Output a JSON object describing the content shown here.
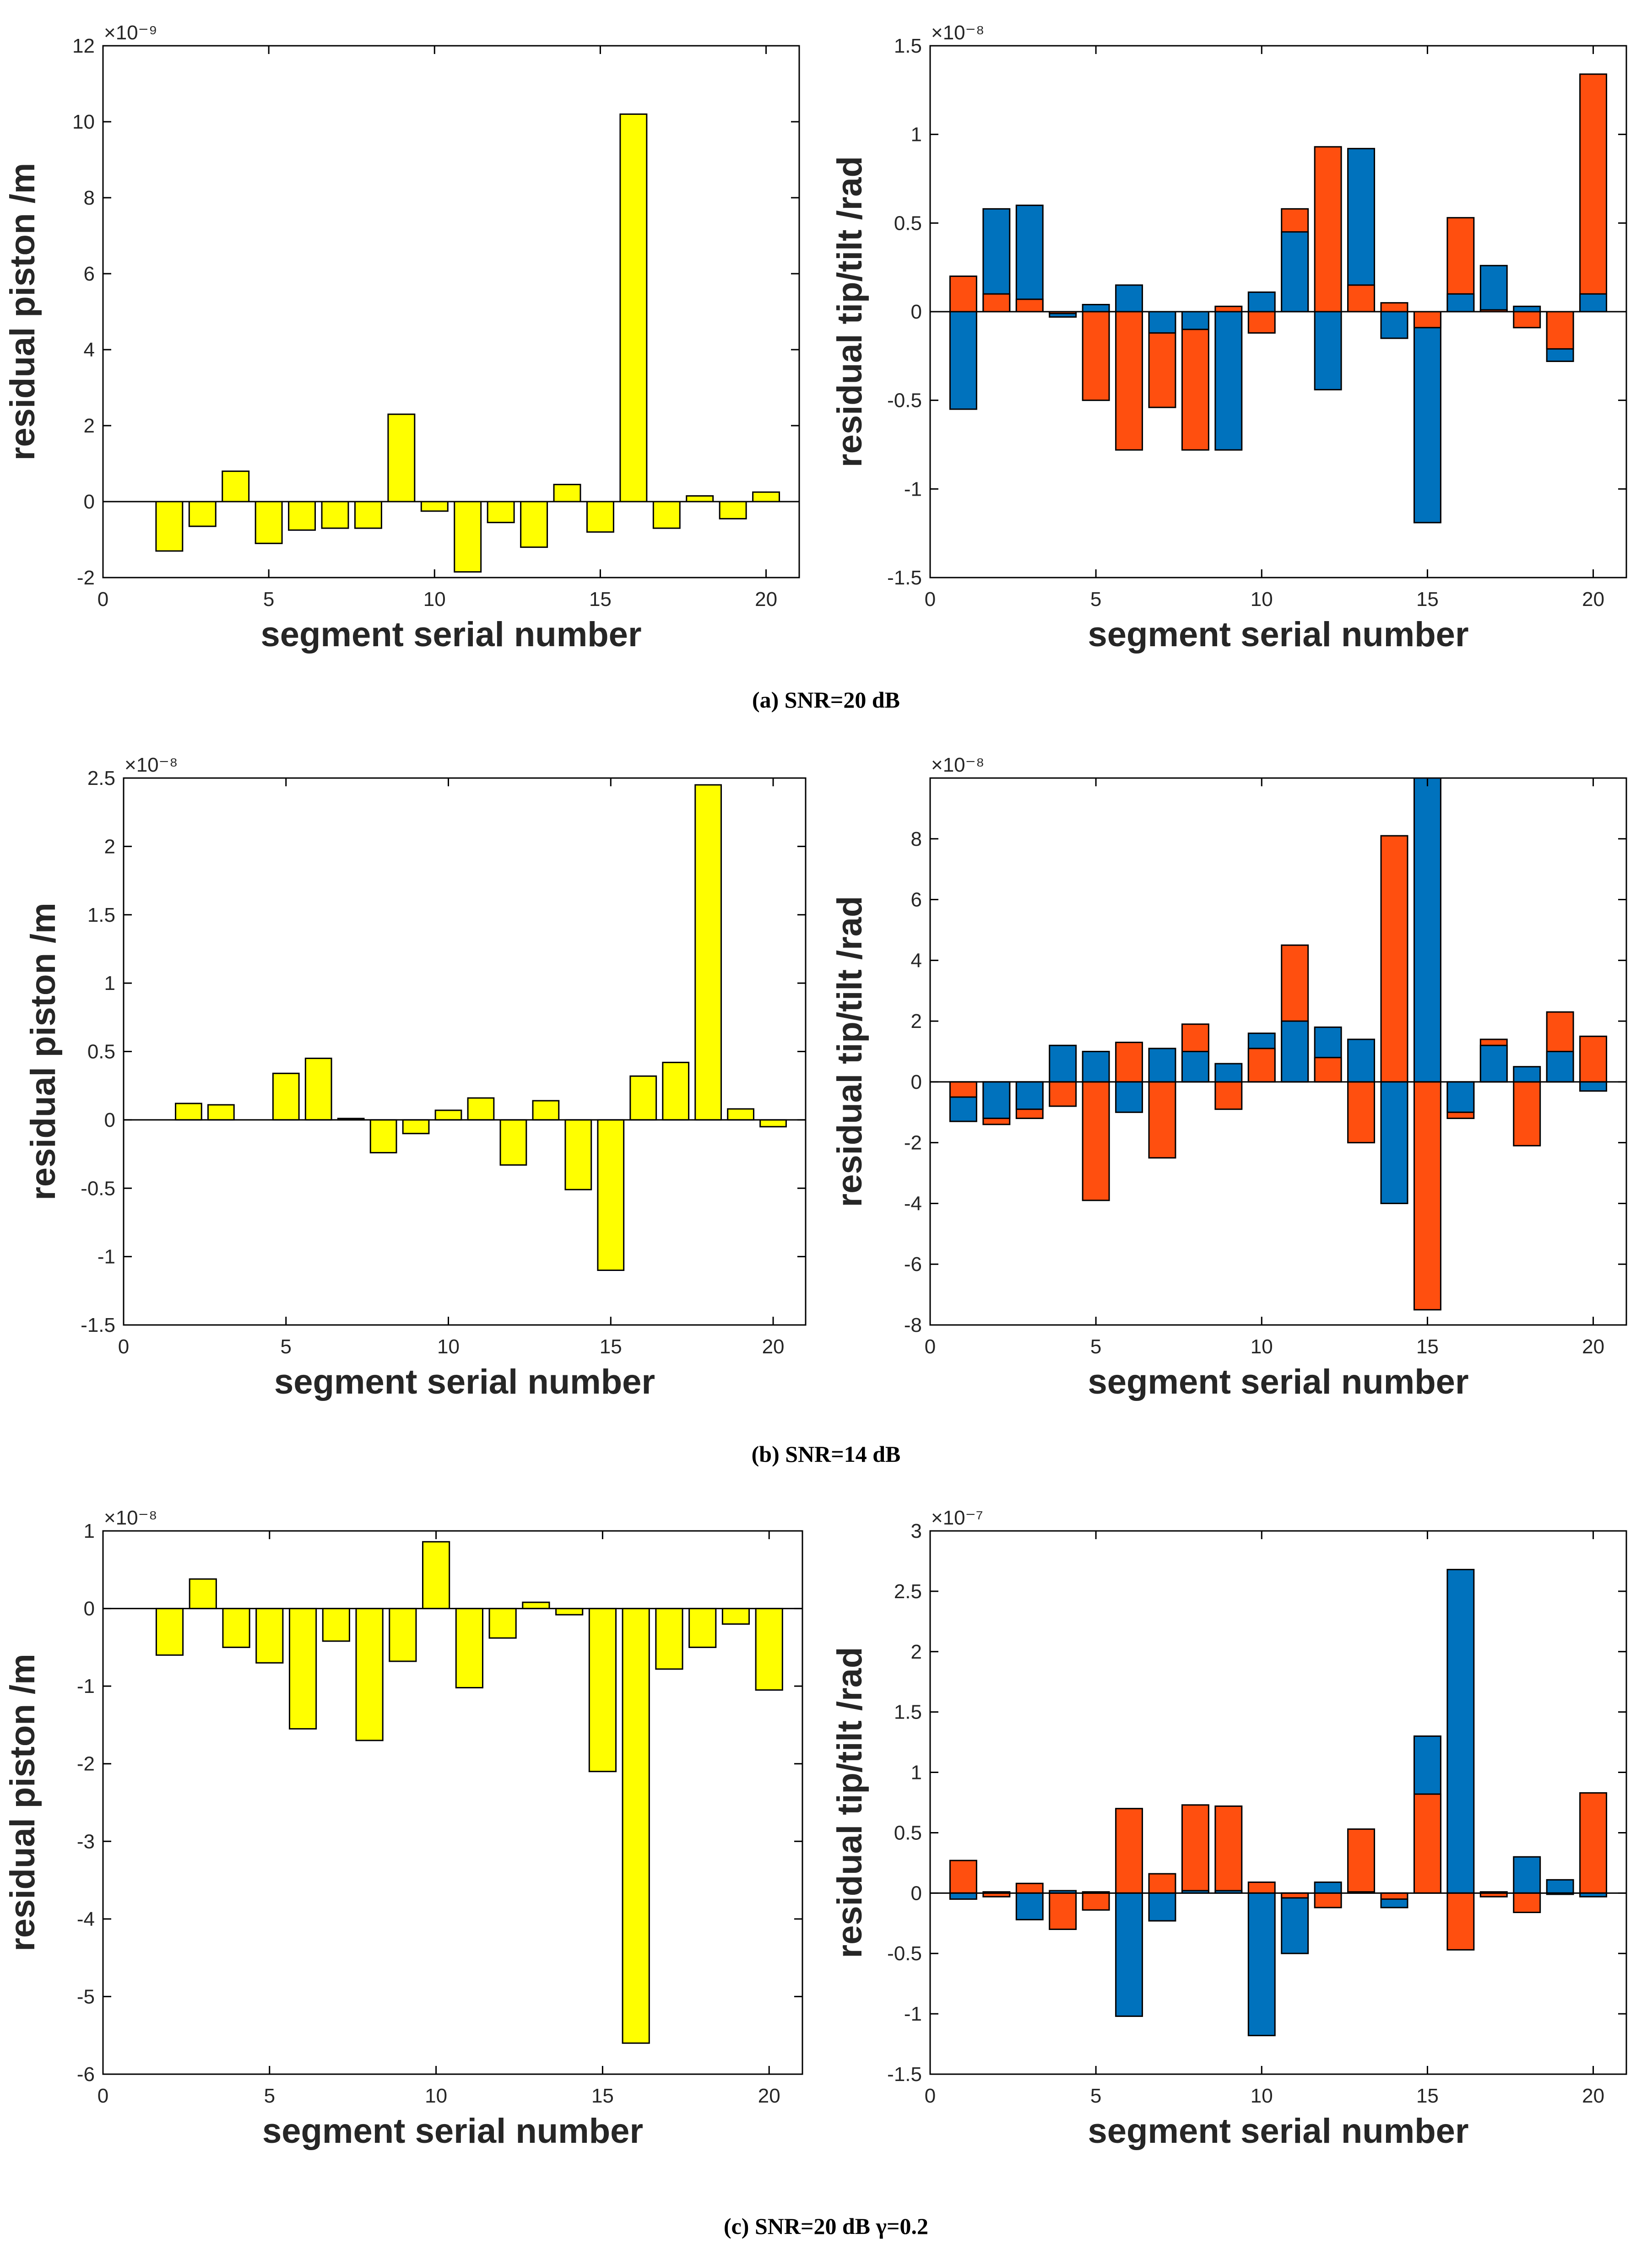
{
  "figure": {
    "captions": [
      "(a) SNR=20 dB",
      "(b) SNR=14 dB",
      "(c) SNR=20 dB   γ=0.2"
    ]
  },
  "colors": {
    "piston": "#ffff00",
    "series_a": "#0072bd",
    "series_b": "#ff4f0f",
    "outline": "#000000"
  },
  "chart_data": [
    {
      "type": "bar",
      "panel": "a-left",
      "xlabel": "segment serial number",
      "ylabel": "residual piston /m",
      "exponent": "×10⁻⁹",
      "xlim": [
        0,
        21
      ],
      "ylim": [
        -2,
        12
      ],
      "xticks": [
        0,
        5,
        10,
        15,
        20
      ],
      "yticks": [
        -2,
        0,
        2,
        4,
        6,
        8,
        10,
        12
      ],
      "ytick_labels": [
        "-2",
        "0",
        "2",
        "4",
        "6",
        "8",
        "10",
        "12"
      ],
      "categories": [
        1,
        2,
        3,
        4,
        5,
        6,
        7,
        8,
        9,
        10,
        11,
        12,
        13,
        14,
        15,
        16,
        17,
        18,
        19,
        20
      ],
      "series": [
        {
          "name": "piston",
          "values": [
            0,
            -1.3,
            -0.65,
            0.8,
            -1.1,
            -0.75,
            -0.7,
            -0.7,
            2.3,
            -0.25,
            -1.85,
            -0.55,
            -1.2,
            0.45,
            -0.8,
            10.2,
            -0.7,
            0.15,
            -0.45,
            0.25
          ]
        }
      ]
    },
    {
      "type": "bar",
      "panel": "a-right",
      "xlabel": "segment serial number",
      "ylabel": "residual tip/tilt /rad",
      "exponent": "×10⁻⁸",
      "xlim": [
        0,
        21
      ],
      "ylim": [
        -1.5,
        1.5
      ],
      "xticks": [
        0,
        5,
        10,
        15,
        20
      ],
      "yticks": [
        -1.5,
        -1,
        -0.5,
        0,
        0.5,
        1,
        1.5
      ],
      "ytick_labels": [
        "-1.5",
        "-1",
        "-0.5",
        "0",
        "0.5",
        "1",
        "1.5"
      ],
      "categories": [
        1,
        2,
        3,
        4,
        5,
        6,
        7,
        8,
        9,
        10,
        11,
        12,
        13,
        14,
        15,
        16,
        17,
        18,
        19,
        20
      ],
      "series": [
        {
          "name": "tip",
          "values": [
            -0.55,
            0.58,
            0.6,
            -0.03,
            0.04,
            0.15,
            -0.12,
            -0.1,
            -0.78,
            0.11,
            0.45,
            -0.44,
            0.92,
            -0.15,
            -1.19,
            0.1,
            0.26,
            0.03,
            -0.28,
            0.1
          ]
        },
        {
          "name": "tilt",
          "values": [
            0.2,
            0.1,
            0.07,
            -0.01,
            -0.5,
            -0.78,
            -0.54,
            -0.78,
            0.03,
            -0.12,
            0.58,
            0.93,
            0.15,
            0.05,
            -0.09,
            0.53,
            0.01,
            -0.09,
            -0.21,
            1.34
          ]
        }
      ]
    },
    {
      "type": "bar",
      "panel": "b-left",
      "xlabel": "segment serial number",
      "ylabel": "residual piston /m",
      "exponent": "×10⁻⁸",
      "xlim": [
        0,
        21
      ],
      "ylim": [
        -1.5,
        2.5
      ],
      "xticks": [
        0,
        5,
        10,
        15,
        20
      ],
      "yticks": [
        -1.5,
        -1,
        -0.5,
        0,
        0.5,
        1,
        1.5,
        2,
        2.5
      ],
      "ytick_labels": [
        "-1.5",
        "-1",
        "-0.5",
        "0",
        "0.5",
        "1",
        "1.5",
        "2",
        "2.5"
      ],
      "categories": [
        1,
        2,
        3,
        4,
        5,
        6,
        7,
        8,
        9,
        10,
        11,
        12,
        13,
        14,
        15,
        16,
        17,
        18,
        19,
        20
      ],
      "series": [
        {
          "name": "piston",
          "values": [
            0,
            0.12,
            0.11,
            0,
            0.34,
            0.45,
            0.01,
            -0.24,
            -0.1,
            0.07,
            0.16,
            -0.33,
            0.14,
            -0.51,
            -1.1,
            0.32,
            0.42,
            2.45,
            0.08,
            -0.05
          ]
        }
      ]
    },
    {
      "type": "bar",
      "panel": "b-right",
      "xlabel": "segment serial number",
      "ylabel": "residual tip/tilt /rad",
      "exponent": "×10⁻⁸",
      "xlim": [
        0,
        21
      ],
      "ylim": [
        -8,
        10
      ],
      "xticks": [
        0,
        5,
        10,
        15,
        20
      ],
      "yticks": [
        -8,
        -6,
        -4,
        -2,
        0,
        2,
        4,
        6,
        8
      ],
      "ytick_labels": [
        "-8",
        "-6",
        "-4",
        "-2",
        "0",
        "2",
        "4",
        "6",
        "8"
      ],
      "categories": [
        1,
        2,
        3,
        4,
        5,
        6,
        7,
        8,
        9,
        10,
        11,
        12,
        13,
        14,
        15,
        16,
        17,
        18,
        19,
        20
      ],
      "series": [
        {
          "name": "tip",
          "values": [
            -1.3,
            -1.2,
            -0.9,
            1.2,
            1.0,
            -1.0,
            1.1,
            1.0,
            0.6,
            1.6,
            2.0,
            1.8,
            1.4,
            -4.0,
            10.0,
            -1.0,
            1.2,
            0.5,
            1.0,
            -0.3
          ]
        },
        {
          "name": "tilt",
          "values": [
            -0.5,
            -1.4,
            -1.2,
            -0.8,
            -3.9,
            1.3,
            -2.5,
            1.9,
            -0.9,
            1.1,
            4.5,
            0.8,
            -2.0,
            8.1,
            -7.5,
            -1.2,
            1.4,
            -2.1,
            2.3,
            1.5
          ]
        }
      ]
    },
    {
      "type": "bar",
      "panel": "c-left",
      "xlabel": "segment serial number",
      "ylabel": "residual piston /m",
      "exponent": "×10⁻⁸",
      "xlim": [
        0,
        21
      ],
      "ylim": [
        -6,
        1
      ],
      "xticks": [
        0,
        5,
        10,
        15,
        20
      ],
      "yticks": [
        -6,
        -5,
        -4,
        -3,
        -2,
        -1,
        0,
        1
      ],
      "ytick_labels": [
        "-6",
        "-5",
        "-4",
        "-3",
        "-2",
        "-1",
        "0",
        "1"
      ],
      "categories": [
        1,
        2,
        3,
        4,
        5,
        6,
        7,
        8,
        9,
        10,
        11,
        12,
        13,
        14,
        15,
        16,
        17,
        18,
        19,
        20
      ],
      "series": [
        {
          "name": "piston",
          "values": [
            0,
            -0.6,
            0.38,
            -0.5,
            -0.7,
            -1.55,
            -0.42,
            -1.7,
            -0.68,
            0.86,
            -1.02,
            -0.38,
            0.08,
            -0.08,
            -2.1,
            -5.6,
            -0.78,
            -0.5,
            -0.2,
            -1.05
          ]
        }
      ]
    },
    {
      "type": "bar",
      "panel": "c-right",
      "xlabel": "segment serial number",
      "ylabel": "residual tip/tilt /rad",
      "exponent": "×10⁻⁷",
      "xlim": [
        0,
        21
      ],
      "ylim": [
        -1.5,
        3
      ],
      "xticks": [
        0,
        5,
        10,
        15,
        20
      ],
      "yticks": [
        -1.5,
        -1,
        -0.5,
        0,
        0.5,
        1,
        1.5,
        2,
        2.5,
        3
      ],
      "ytick_labels": [
        "-1.5",
        "-1",
        "-0.5",
        "0",
        "0.5",
        "1",
        "1.5",
        "2",
        "2.5",
        "3"
      ],
      "categories": [
        1,
        2,
        3,
        4,
        5,
        6,
        7,
        8,
        9,
        10,
        11,
        12,
        13,
        14,
        15,
        16,
        17,
        18,
        19,
        20
      ],
      "series": [
        {
          "name": "tip",
          "values": [
            -0.05,
            0.01,
            -0.22,
            0.02,
            0.01,
            -1.02,
            -0.23,
            0.02,
            0.02,
            -1.18,
            -0.5,
            0.09,
            0.01,
            -0.12,
            1.3,
            2.68,
            0.01,
            0.3,
            0.11,
            -0.03
          ]
        },
        {
          "name": "tilt",
          "values": [
            0.27,
            -0.03,
            0.08,
            -0.3,
            -0.14,
            0.7,
            0.16,
            0.73,
            0.72,
            0.09,
            -0.04,
            -0.12,
            0.53,
            -0.05,
            0.82,
            -0.47,
            -0.03,
            -0.16,
            -0.01,
            0.83
          ]
        }
      ]
    }
  ]
}
